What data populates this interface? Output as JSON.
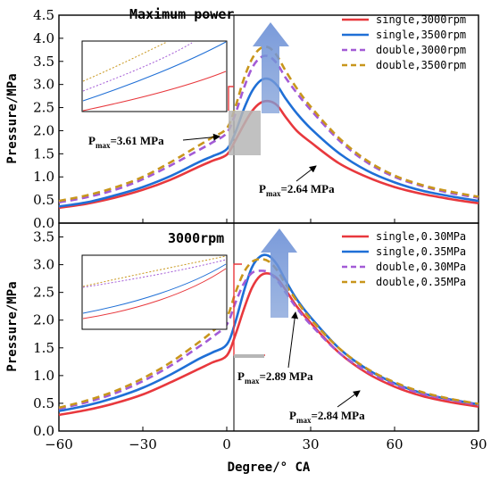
{
  "figure": {
    "xlabel": "Degree/° CA",
    "xlim": [
      -60,
      90
    ],
    "xticks": [
      -60,
      -30,
      0,
      30,
      60,
      90
    ]
  },
  "chart_data": [
    {
      "type": "line",
      "title": "Maximum power",
      "ylabel": "Pressure/MPa",
      "ylim": [
        0,
        4.5
      ],
      "yticks": [
        0.0,
        0.5,
        1.0,
        1.5,
        2.0,
        2.5,
        3.0,
        3.5,
        4.0,
        4.5
      ],
      "grid": false,
      "legend_position": "top-right",
      "series": [
        {
          "name": "single,3000rpm",
          "color": "#e8383d",
          "dash": "solid",
          "x": [
            -60,
            -50,
            -40,
            -30,
            -20,
            -10,
            -5,
            0,
            3,
            6,
            9,
            12,
            15,
            18,
            21,
            25,
            30,
            40,
            50,
            60,
            70,
            80,
            90
          ],
          "y": [
            0.33,
            0.42,
            0.55,
            0.72,
            0.94,
            1.22,
            1.35,
            1.48,
            1.78,
            2.12,
            2.42,
            2.6,
            2.64,
            2.55,
            2.3,
            2.0,
            1.75,
            1.3,
            1.0,
            0.78,
            0.63,
            0.52,
            0.43
          ]
        },
        {
          "name": "single,3500rpm",
          "color": "#1f6fd6",
          "dash": "solid",
          "x": [
            -60,
            -50,
            -40,
            -30,
            -20,
            -10,
            -5,
            0,
            3,
            6,
            9,
            12,
            15,
            18,
            21,
            25,
            30,
            40,
            50,
            60,
            70,
            80,
            90
          ],
          "y": [
            0.36,
            0.45,
            0.6,
            0.78,
            1.02,
            1.32,
            1.45,
            1.6,
            1.95,
            2.45,
            2.85,
            3.08,
            3.12,
            2.98,
            2.7,
            2.38,
            2.05,
            1.52,
            1.14,
            0.88,
            0.7,
            0.58,
            0.48
          ]
        },
        {
          "name": "double,3000rpm",
          "color": "#a35bd6",
          "dash": "dash",
          "x": [
            -60,
            -50,
            -40,
            -30,
            -20,
            -10,
            -5,
            0,
            3,
            6,
            9,
            12,
            15,
            18,
            21,
            25,
            30,
            40,
            50,
            60,
            70,
            80,
            90
          ],
          "y": [
            0.45,
            0.56,
            0.72,
            0.95,
            1.25,
            1.58,
            1.75,
            1.95,
            2.35,
            2.9,
            3.35,
            3.58,
            3.61,
            3.45,
            3.15,
            2.82,
            2.45,
            1.8,
            1.32,
            1.0,
            0.8,
            0.65,
            0.55
          ]
        },
        {
          "name": "double,3500rpm",
          "color": "#c8961c",
          "dash": "dash",
          "x": [
            -60,
            -50,
            -40,
            -30,
            -20,
            -10,
            -5,
            0,
            3,
            6,
            9,
            12,
            15,
            18,
            21,
            25,
            30,
            40,
            50,
            60,
            70,
            80,
            90
          ],
          "y": [
            0.48,
            0.6,
            0.77,
            1.0,
            1.32,
            1.68,
            1.86,
            2.05,
            2.5,
            3.1,
            3.55,
            3.78,
            3.8,
            3.62,
            3.3,
            2.92,
            2.52,
            1.85,
            1.36,
            1.03,
            0.82,
            0.68,
            0.57
          ]
        }
      ],
      "annotations": [
        {
          "main": "P",
          "sub": "max",
          "rest": "=3.61 MPa"
        },
        {
          "main": "P",
          "sub": "max",
          "rest": "=2.64 MPa"
        }
      ]
    },
    {
      "type": "line",
      "title": "3000rpm",
      "ylabel": "Pressure/MPa",
      "ylim": [
        0,
        3.75
      ],
      "yticks": [
        0.0,
        0.5,
        1.0,
        1.5,
        2.0,
        2.5,
        3.0,
        3.5
      ],
      "grid": false,
      "legend_position": "top-right",
      "series": [
        {
          "name": "single,0.30MPa",
          "color": "#e8383d",
          "dash": "solid",
          "x": [
            -60,
            -50,
            -40,
            -30,
            -20,
            -10,
            -5,
            0,
            3,
            6,
            9,
            12,
            15,
            18,
            21,
            25,
            30,
            40,
            50,
            60,
            70,
            80,
            90
          ],
          "y": [
            0.29,
            0.38,
            0.5,
            0.66,
            0.88,
            1.12,
            1.24,
            1.36,
            1.72,
            2.18,
            2.58,
            2.8,
            2.84,
            2.75,
            2.55,
            2.25,
            1.95,
            1.42,
            1.05,
            0.8,
            0.63,
            0.52,
            0.44
          ]
        },
        {
          "name": "single,0.35MPa",
          "color": "#1f6fd6",
          "dash": "solid",
          "x": [
            -60,
            -50,
            -40,
            -30,
            -20,
            -10,
            -5,
            0,
            3,
            6,
            9,
            12,
            15,
            18,
            21,
            25,
            30,
            40,
            50,
            60,
            70,
            80,
            90
          ],
          "y": [
            0.36,
            0.46,
            0.6,
            0.78,
            1.02,
            1.3,
            1.42,
            1.56,
            1.95,
            2.5,
            2.95,
            3.15,
            3.16,
            3.0,
            2.72,
            2.38,
            2.05,
            1.5,
            1.12,
            0.86,
            0.68,
            0.57,
            0.48
          ]
        },
        {
          "name": "double,0.30MPa",
          "color": "#a35bd6",
          "dash": "dash",
          "x": [
            -60,
            -50,
            -40,
            -30,
            -20,
            -10,
            -5,
            0,
            3,
            6,
            9,
            12,
            15,
            18,
            21,
            25,
            30,
            40,
            50,
            60,
            70,
            80,
            90
          ],
          "y": [
            0.4,
            0.52,
            0.68,
            0.9,
            1.18,
            1.52,
            1.7,
            1.92,
            2.3,
            2.65,
            2.85,
            2.89,
            2.86,
            2.72,
            2.5,
            2.22,
            1.92,
            1.42,
            1.08,
            0.84,
            0.67,
            0.56,
            0.47
          ]
        },
        {
          "name": "double,0.35MPa",
          "color": "#c8961c",
          "dash": "dash",
          "x": [
            -60,
            -50,
            -40,
            -30,
            -20,
            -10,
            -5,
            0,
            3,
            6,
            9,
            12,
            15,
            18,
            21,
            25,
            30,
            40,
            50,
            60,
            70,
            80,
            90
          ],
          "y": [
            0.42,
            0.55,
            0.72,
            0.95,
            1.24,
            1.6,
            1.8,
            2.05,
            2.48,
            2.85,
            3.05,
            3.1,
            3.06,
            2.9,
            2.65,
            2.35,
            2.02,
            1.5,
            1.13,
            0.88,
            0.7,
            0.58,
            0.49
          ]
        }
      ],
      "annotations": [
        {
          "main": "P",
          "sub": "max",
          "rest": "=2.89 MPa"
        },
        {
          "main": "P",
          "sub": "max",
          "rest": "=2.84 MPa"
        }
      ]
    }
  ]
}
